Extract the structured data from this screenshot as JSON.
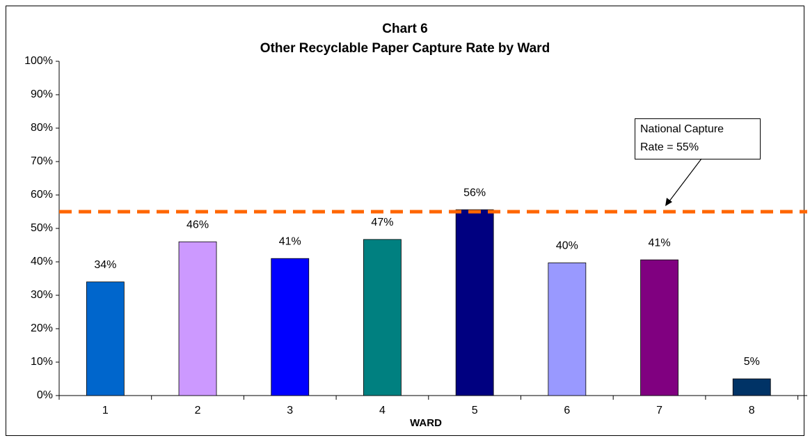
{
  "chart_data": {
    "type": "bar",
    "title": [
      "Chart 6",
      "Other Recyclable Paper Capture Rate by Ward"
    ],
    "x_label": "WARD",
    "categories": [
      "1",
      "2",
      "3",
      "4",
      "5",
      "6",
      "7",
      "8"
    ],
    "values": [
      34,
      46,
      41,
      46.7,
      55.6,
      39.7,
      40.6,
      5
    ],
    "value_labels": [
      "34%",
      "46%",
      "41%",
      "47%",
      "56%",
      "40%",
      "41%",
      "5%"
    ],
    "colors": [
      "#0066cc",
      "#cc99ff",
      "#0000ff",
      "#008080",
      "#000080",
      "#9999ff",
      "#800080",
      "#003366"
    ],
    "ylim": [
      0,
      100
    ],
    "yticks": [
      {
        "value": 0,
        "label": "0%"
      },
      {
        "value": 10,
        "label": "10%"
      },
      {
        "value": 20,
        "label": "20%"
      },
      {
        "value": 30,
        "label": "30%"
      },
      {
        "value": 40,
        "label": "40%"
      },
      {
        "value": 50,
        "label": "50%"
      },
      {
        "value": 60,
        "label": "60%"
      },
      {
        "value": 70,
        "label": "70%"
      },
      {
        "value": 80,
        "label": "80%"
      },
      {
        "value": 90,
        "label": "90%"
      },
      {
        "value": 100,
        "label": "100%"
      }
    ],
    "reference_line": {
      "value": 55,
      "color": "#ff6600"
    },
    "annotation": [
      "National Capture",
      "Rate = 55%"
    ]
  }
}
